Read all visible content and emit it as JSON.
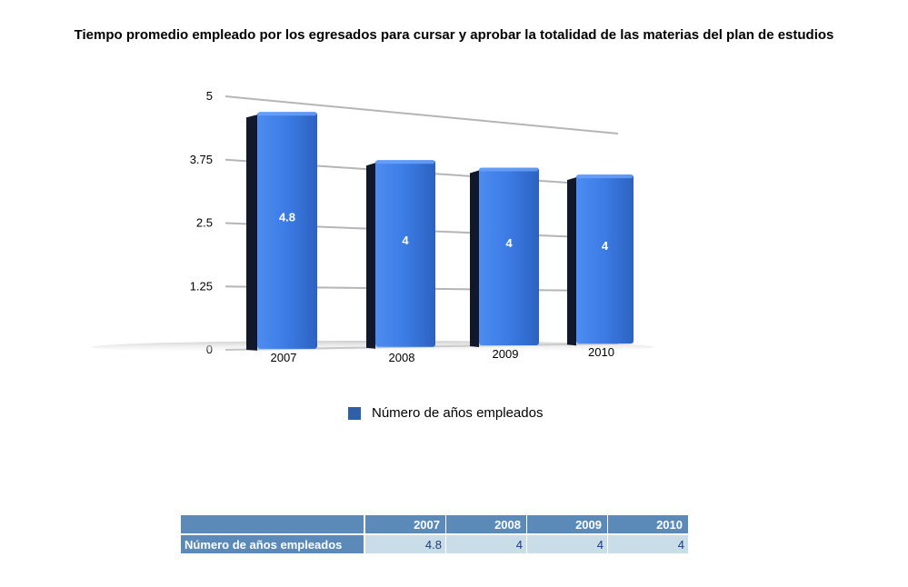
{
  "chart_data": {
    "type": "bar",
    "title": "Tiempo promedio empleado por los egresados para cursar y aprobar la totalidad de las materias del plan de estudios",
    "categories": [
      "2007",
      "2008",
      "2009",
      "2010"
    ],
    "series": [
      {
        "name": "Número de años empleados",
        "values": [
          4.8,
          4,
          4,
          4
        ],
        "color": "#3a78d8"
      }
    ],
    "y_ticks": [
      "5",
      "3.75",
      "2.5",
      "1.25",
      "0"
    ],
    "ylim": [
      0,
      5
    ],
    "grid": true,
    "legend": "bottom",
    "data_labels": [
      "4.8",
      "4",
      "4",
      "4"
    ]
  },
  "table": {
    "corner": "",
    "headers": [
      "2007",
      "2008",
      "2009",
      "2010"
    ],
    "row_label": "Número de años empleados",
    "values": [
      "4.8",
      "4",
      "4",
      "4"
    ]
  }
}
